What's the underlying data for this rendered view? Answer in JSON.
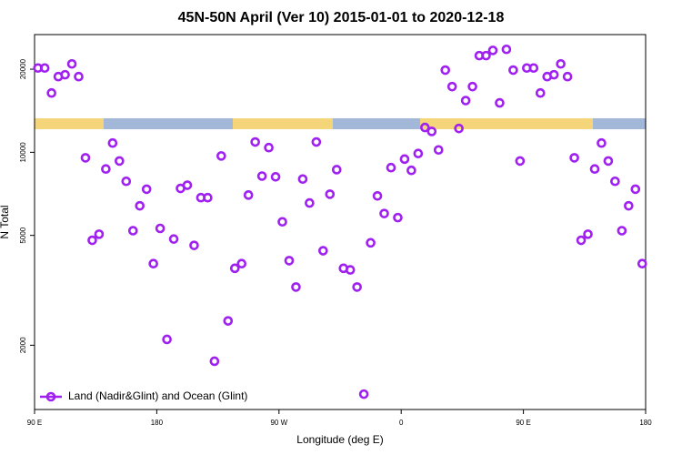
{
  "chart_data": {
    "type": "scatter",
    "title": "45N-50N April (Ver 10)   2015-01-01 to 2020-12-18",
    "x_label": "Longitude (deg E)",
    "y_label": "N Total",
    "xlim": [
      90,
      540
    ],
    "xticks": [
      {
        "value": 90,
        "label": "90 E"
      },
      180,
      {
        "value": 270,
        "label": "90 W"
      },
      {
        "value": 360,
        "label": "0"
      },
      {
        "value": 450,
        "label": "90 E"
      },
      {
        "value": 540,
        "label": "180"
      }
    ],
    "ylim": [
      1170,
      26700
    ],
    "yticks": [
      2000,
      5000,
      10000,
      20000
    ],
    "y_scale": "log",
    "legend": "lower left",
    "series": [
      {
        "name": "Land (Nadir&Glint) and Ocean (Glint)",
        "color": "#a020f0",
        "x": [
          92.5,
          97.5,
          102.5,
          107.5,
          112.5,
          117.5,
          122.5,
          127.5,
          132.5,
          137.5,
          142.5,
          147.5,
          152.5,
          157.5,
          162.5,
          167.5,
          172.5,
          177.5,
          182.5,
          187.5,
          192.5,
          197.5,
          202.5,
          207.5,
          212.5,
          217.5,
          222.5,
          227.5,
          232.5,
          237.5,
          242.5,
          247.5,
          252.5,
          257.5,
          262.5,
          267.5,
          272.5,
          277.5,
          282.5,
          287.5,
          292.5,
          297.5,
          302.5,
          307.5,
          312.5,
          317.5,
          322.5,
          327.5,
          332.5,
          337.5,
          342.5,
          347.5,
          352.5,
          357.5,
          362.5,
          367.5,
          372.5,
          377.5,
          382.5,
          387.5,
          392.5,
          397.5,
          402.5,
          407.5,
          412.5,
          417.5,
          422.5,
          427.5,
          432.5,
          437.5,
          442.5,
          447.5,
          452.5,
          457.5,
          462.5,
          467.5,
          472.5,
          477.5,
          482.5,
          487.5,
          492.5,
          497.5,
          502.5,
          507.5,
          512.5,
          517.5,
          522.5,
          527.5,
          532.5,
          537.5
        ],
        "values": [
          20200,
          20200,
          16400,
          18800,
          19100,
          20900,
          18800,
          9550,
          4800,
          5050,
          8700,
          10800,
          9300,
          7850,
          5200,
          6400,
          7350,
          3950,
          5300,
          2100,
          4850,
          7400,
          7600,
          4600,
          6850,
          6850,
          1750,
          9700,
          2450,
          3800,
          3950,
          7000,
          10900,
          8200,
          10400,
          8150,
          5600,
          4050,
          3250,
          8000,
          6550,
          10900,
          4400,
          7050,
          8650,
          3800,
          3750,
          3250,
          1330,
          4700,
          6950,
          6000,
          8800,
          5800,
          9450,
          8600,
          9900,
          12300,
          11900,
          10200,
          19850,
          17300,
          12200,
          15400,
          17300,
          22400,
          22400,
          23400,
          15100,
          23600,
          19850,
          9300,
          20200,
          20200,
          16400,
          18800,
          19100,
          20900,
          18800,
          9550,
          4800,
          5050,
          8700,
          10800,
          9300,
          7850,
          5200,
          6400,
          7350,
          3950
        ]
      }
    ]
  }
}
